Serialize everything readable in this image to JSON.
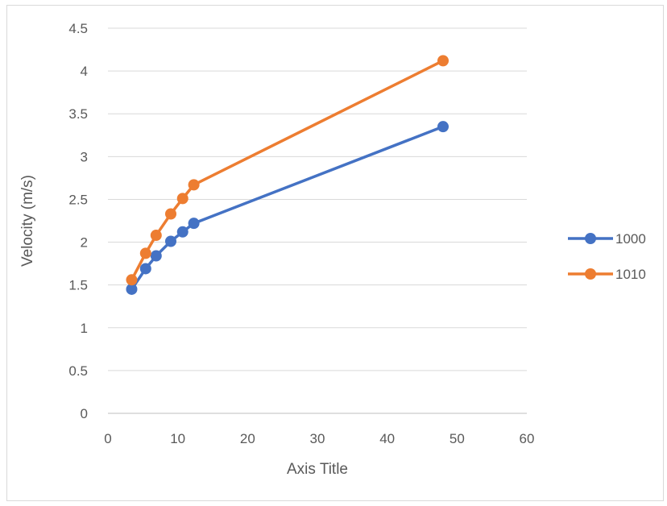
{
  "chart_data": {
    "type": "line",
    "title": "",
    "xlabel": "Axis Title",
    "ylabel": "Velocity (m/s)",
    "xlim": [
      0,
      60
    ],
    "ylim": [
      0,
      4.5
    ],
    "x_ticks": [
      "0",
      "10",
      "20",
      "30",
      "40",
      "50",
      "60"
    ],
    "y_ticks": [
      "0",
      "0.5",
      "1",
      "1.5",
      "2",
      "2.5",
      "3",
      "3.5",
      "4",
      "4.5"
    ],
    "grid": true,
    "legend_position": "right",
    "series": [
      {
        "name": "1000",
        "color": "#4472c4",
        "x": [
          3.4,
          5.4,
          6.9,
          9.0,
          10.7,
          12.3,
          48.0
        ],
        "y": [
          1.45,
          1.69,
          1.84,
          2.01,
          2.12,
          2.22,
          3.35
        ]
      },
      {
        "name": "1010",
        "color": "#ed7d31",
        "x": [
          3.4,
          5.4,
          6.9,
          9.0,
          10.7,
          12.3,
          48.0
        ],
        "y": [
          1.56,
          1.87,
          2.08,
          2.33,
          2.51,
          2.67,
          4.12
        ]
      }
    ]
  }
}
